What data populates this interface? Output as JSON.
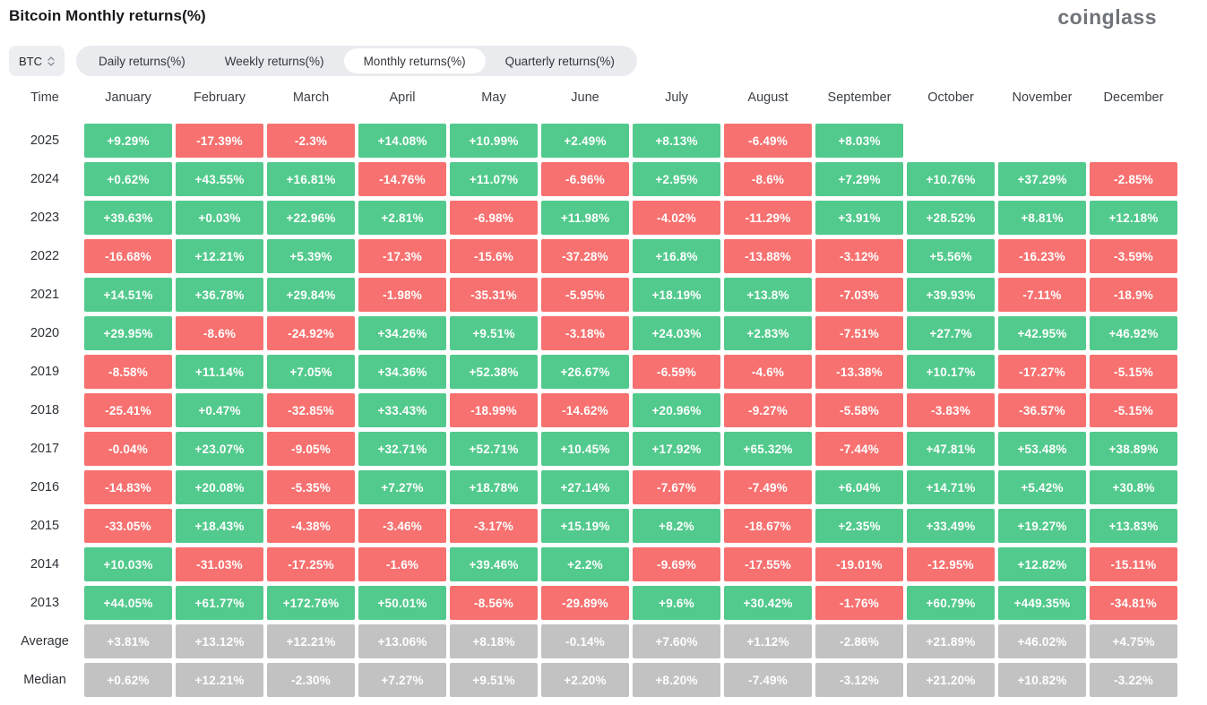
{
  "page": {
    "title": "Bitcoin Monthly returns(%)",
    "logo_text": "coinglass"
  },
  "controls": {
    "symbol": "BTC",
    "tabs": [
      "Daily returns(%)",
      "Weekly returns(%)",
      "Monthly returns(%)",
      "Quarterly returns(%)"
    ],
    "active_tab": "Monthly returns(%)"
  },
  "colors": {
    "positive": "#52ca8d",
    "negative": "#f77170",
    "neutral": "#c2c2c2"
  },
  "chart_data": {
    "type": "heatmap",
    "title": "Bitcoin Monthly returns(%)",
    "columns": [
      "Time",
      "January",
      "February",
      "March",
      "April",
      "May",
      "June",
      "July",
      "August",
      "September",
      "October",
      "November",
      "December"
    ],
    "rows": [
      {
        "label": "2025",
        "type": "year",
        "values": [
          "+9.29%",
          "-17.39%",
          "-2.3%",
          "+14.08%",
          "+10.99%",
          "+2.49%",
          "+8.13%",
          "-6.49%",
          "+8.03%",
          "",
          "",
          ""
        ]
      },
      {
        "label": "2024",
        "type": "year",
        "values": [
          "+0.62%",
          "+43.55%",
          "+16.81%",
          "-14.76%",
          "+11.07%",
          "-6.96%",
          "+2.95%",
          "-8.6%",
          "+7.29%",
          "+10.76%",
          "+37.29%",
          "-2.85%"
        ]
      },
      {
        "label": "2023",
        "type": "year",
        "values": [
          "+39.63%",
          "+0.03%",
          "+22.96%",
          "+2.81%",
          "-6.98%",
          "+11.98%",
          "-4.02%",
          "-11.29%",
          "+3.91%",
          "+28.52%",
          "+8.81%",
          "+12.18%"
        ]
      },
      {
        "label": "2022",
        "type": "year",
        "values": [
          "-16.68%",
          "+12.21%",
          "+5.39%",
          "-17.3%",
          "-15.6%",
          "-37.28%",
          "+16.8%",
          "-13.88%",
          "-3.12%",
          "+5.56%",
          "-16.23%",
          "-3.59%"
        ]
      },
      {
        "label": "2021",
        "type": "year",
        "values": [
          "+14.51%",
          "+36.78%",
          "+29.84%",
          "-1.98%",
          "-35.31%",
          "-5.95%",
          "+18.19%",
          "+13.8%",
          "-7.03%",
          "+39.93%",
          "-7.11%",
          "-18.9%"
        ]
      },
      {
        "label": "2020",
        "type": "year",
        "values": [
          "+29.95%",
          "-8.6%",
          "-24.92%",
          "+34.26%",
          "+9.51%",
          "-3.18%",
          "+24.03%",
          "+2.83%",
          "-7.51%",
          "+27.7%",
          "+42.95%",
          "+46.92%"
        ]
      },
      {
        "label": "2019",
        "type": "year",
        "values": [
          "-8.58%",
          "+11.14%",
          "+7.05%",
          "+34.36%",
          "+52.38%",
          "+26.67%",
          "-6.59%",
          "-4.6%",
          "-13.38%",
          "+10.17%",
          "-17.27%",
          "-5.15%"
        ]
      },
      {
        "label": "2018",
        "type": "year",
        "values": [
          "-25.41%",
          "+0.47%",
          "-32.85%",
          "+33.43%",
          "-18.99%",
          "-14.62%",
          "+20.96%",
          "-9.27%",
          "-5.58%",
          "-3.83%",
          "-36.57%",
          "-5.15%"
        ]
      },
      {
        "label": "2017",
        "type": "year",
        "values": [
          "-0.04%",
          "+23.07%",
          "-9.05%",
          "+32.71%",
          "+52.71%",
          "+10.45%",
          "+17.92%",
          "+65.32%",
          "-7.44%",
          "+47.81%",
          "+53.48%",
          "+38.89%"
        ]
      },
      {
        "label": "2016",
        "type": "year",
        "values": [
          "-14.83%",
          "+20.08%",
          "-5.35%",
          "+7.27%",
          "+18.78%",
          "+27.14%",
          "-7.67%",
          "-7.49%",
          "+6.04%",
          "+14.71%",
          "+5.42%",
          "+30.8%"
        ]
      },
      {
        "label": "2015",
        "type": "year",
        "values": [
          "-33.05%",
          "+18.43%",
          "-4.38%",
          "-3.46%",
          "-3.17%",
          "+15.19%",
          "+8.2%",
          "-18.67%",
          "+2.35%",
          "+33.49%",
          "+19.27%",
          "+13.83%"
        ]
      },
      {
        "label": "2014",
        "type": "year",
        "values": [
          "+10.03%",
          "-31.03%",
          "-17.25%",
          "-1.6%",
          "+39.46%",
          "+2.2%",
          "-9.69%",
          "-17.55%",
          "-19.01%",
          "-12.95%",
          "+12.82%",
          "-15.11%"
        ]
      },
      {
        "label": "2013",
        "type": "year",
        "values": [
          "+44.05%",
          "+61.77%",
          "+172.76%",
          "+50.01%",
          "-8.56%",
          "-29.89%",
          "+9.6%",
          "+30.42%",
          "-1.76%",
          "+60.79%",
          "+449.35%",
          "-34.81%"
        ]
      },
      {
        "label": "Average",
        "type": "stat",
        "values": [
          "+3.81%",
          "+13.12%",
          "+12.21%",
          "+13.06%",
          "+8.18%",
          "-0.14%",
          "+7.60%",
          "+1.12%",
          "-2.86%",
          "+21.89%",
          "+46.02%",
          "+4.75%"
        ]
      },
      {
        "label": "Median",
        "type": "stat",
        "values": [
          "+0.62%",
          "+12.21%",
          "-2.30%",
          "+7.27%",
          "+9.51%",
          "+2.20%",
          "+8.20%",
          "-7.49%",
          "-3.12%",
          "+21.20%",
          "+10.82%",
          "-3.22%"
        ]
      }
    ]
  }
}
